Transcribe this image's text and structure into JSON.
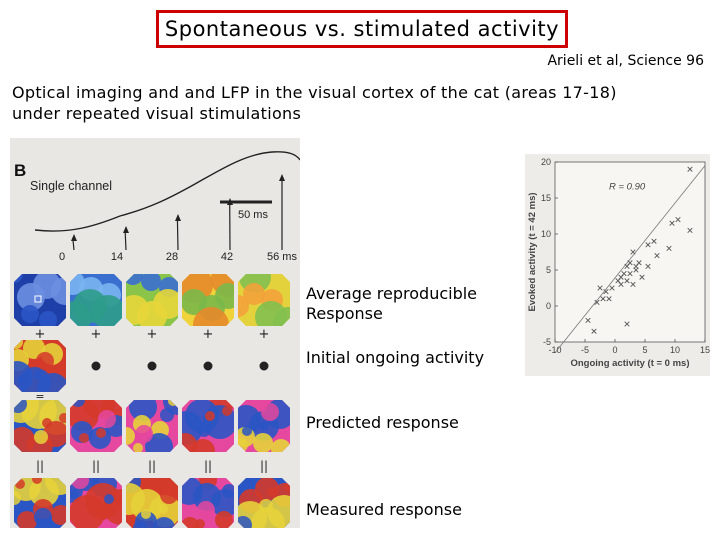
{
  "slide": {
    "title": "Spontaneous vs. stimulated activity",
    "citation": "Arieli et al, Science 96",
    "subtitle": "Optical imaging and and LFP in the visual cortex of the cat (areas 17-18) under repeated visual stimulations"
  },
  "figure_b": {
    "panel_letter": "B",
    "trace_label": "Single channel",
    "scale_bar_label": "50 ms",
    "time_markers": [
      "0",
      "14",
      "28",
      "42",
      "56 ms"
    ],
    "row_labels": [
      "Average reproducible Response",
      "Initial ongoing activity",
      "Predicted response",
      "Measured response"
    ]
  },
  "chart_data": {
    "type": "scatter",
    "title": "",
    "xlabel": "Ongoing activity (t = 0 ms)",
    "ylabel": "Evoked activity (t = 42 ms)",
    "xlim": [
      -10,
      15
    ],
    "ylim": [
      -5,
      20
    ],
    "xticks": [
      "-10",
      "-5",
      "0",
      "5",
      "10",
      "15"
    ],
    "yticks": [
      "20",
      "15",
      "10",
      "5",
      "0",
      "-5"
    ],
    "annotation": "R = 0.90",
    "grid": false,
    "marker": "x",
    "fit_line": {
      "x": [
        -10,
        15
      ],
      "y": [
        -6.5,
        19.5
      ]
    },
    "points": [
      {
        "x": -3.5,
        "y": -3.5
      },
      {
        "x": -4.5,
        "y": -2.0
      },
      {
        "x": -3.0,
        "y": 0.5
      },
      {
        "x": -2.0,
        "y": 1.0
      },
      {
        "x": -2.5,
        "y": 2.5
      },
      {
        "x": -1.5,
        "y": 2.0
      },
      {
        "x": -0.5,
        "y": 2.5
      },
      {
        "x": 2.0,
        "y": -2.5
      },
      {
        "x": 0.5,
        "y": 3.5
      },
      {
        "x": 1.0,
        "y": 4.0
      },
      {
        "x": 1.5,
        "y": 4.5
      },
      {
        "x": 2.0,
        "y": 3.5
      },
      {
        "x": 2.5,
        "y": 4.5
      },
      {
        "x": 3.0,
        "y": 3.0
      },
      {
        "x": 2.5,
        "y": 6.0
      },
      {
        "x": 3.5,
        "y": 5.5
      },
      {
        "x": 3.0,
        "y": 7.5
      },
      {
        "x": 4.0,
        "y": 6.0
      },
      {
        "x": 4.5,
        "y": 4.0
      },
      {
        "x": 5.5,
        "y": 5.5
      },
      {
        "x": 5.5,
        "y": 8.5
      },
      {
        "x": 6.5,
        "y": 9.0
      },
      {
        "x": 7.0,
        "y": 7.0
      },
      {
        "x": 9.0,
        "y": 8.0
      },
      {
        "x": 9.5,
        "y": 11.5
      },
      {
        "x": 10.5,
        "y": 12.0
      },
      {
        "x": 12.5,
        "y": 10.5
      },
      {
        "x": 12.5,
        "y": 19.0
      },
      {
        "x": 3.5,
        "y": 5.0
      },
      {
        "x": 2.0,
        "y": 5.5
      },
      {
        "x": 1.0,
        "y": 3.0
      },
      {
        "x": -1.0,
        "y": 1.0
      }
    ]
  }
}
